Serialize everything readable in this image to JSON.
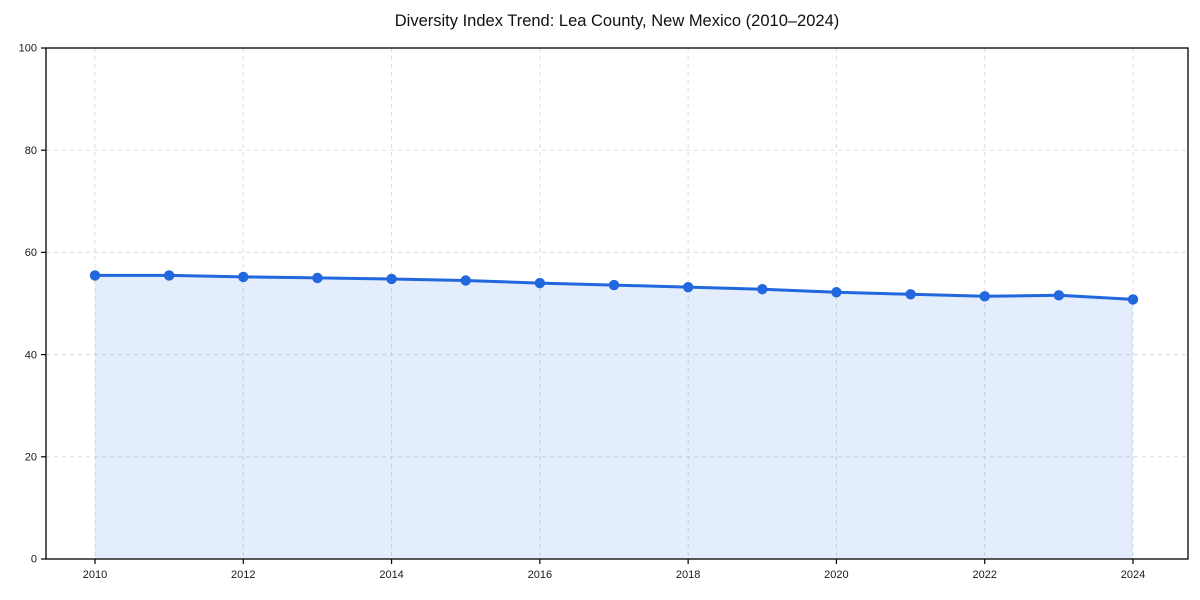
{
  "chart_data": {
    "type": "area",
    "title": "Diversity Index Trend: Lea County, New Mexico (2010–2024)",
    "xlabel": "",
    "ylabel": "",
    "x": [
      2010,
      2011,
      2012,
      2013,
      2014,
      2015,
      2016,
      2017,
      2018,
      2019,
      2020,
      2021,
      2022,
      2023,
      2024
    ],
    "series": [
      {
        "name": "Diversity Index",
        "values": [
          55.5,
          55.5,
          55.2,
          55.0,
          54.8,
          54.5,
          54.0,
          53.6,
          53.2,
          52.8,
          52.2,
          51.8,
          51.4,
          51.6,
          50.8
        ]
      }
    ],
    "ylim": [
      0,
      100
    ],
    "yticks": [
      0,
      20,
      40,
      60,
      80,
      100
    ],
    "xticks": [
      2010,
      2012,
      2014,
      2016,
      2018,
      2020,
      2022,
      2024
    ],
    "grid": true,
    "grid_style": "dashed",
    "legend": false,
    "marker": "circle",
    "colors": {
      "line": "#2167dd",
      "marker": "#2167dd",
      "fill": "rgba(33, 103, 221, 0.12)",
      "grid": "#dcdcdc",
      "spine": "#000000",
      "tick_text": "#1a1a1a",
      "background": "#ffffff"
    }
  }
}
